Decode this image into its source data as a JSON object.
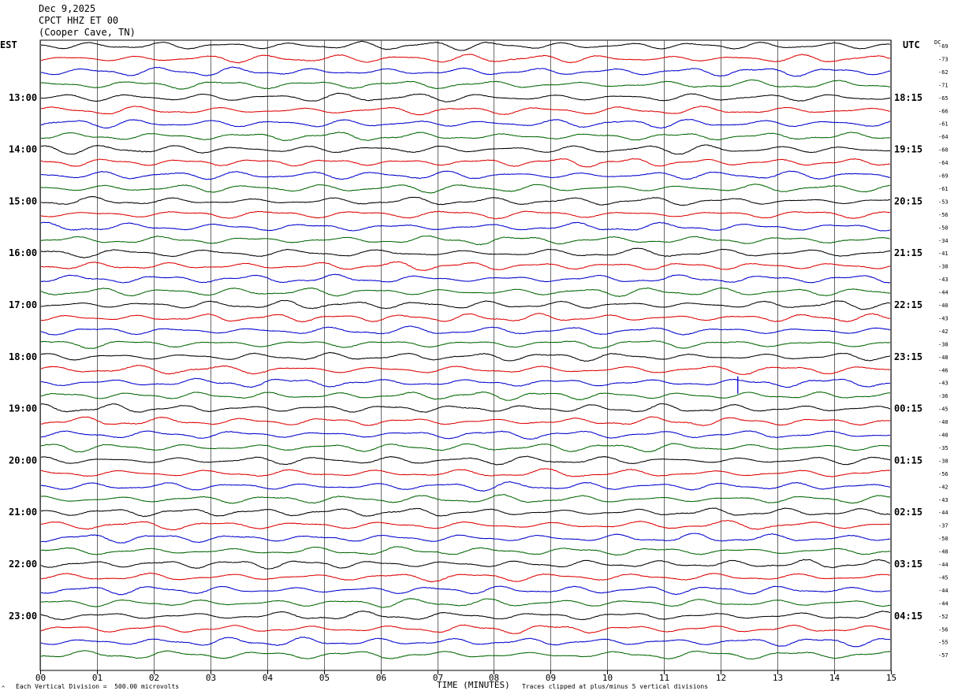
{
  "header": {
    "date": "Dec 9,2025",
    "station": "CPCT HHZ ET 00",
    "location": "(Cooper Cave, TN)"
  },
  "left_zone_label": "EST",
  "right_zone_label": "UTC",
  "dc_label": "DC",
  "footer": {
    "scale_text": "Each Vertical Division =  500.00 microvolts",
    "clip_text": "Traces clipped at plus/minus 5 vertical divisions",
    "corner_mark": "^"
  },
  "colors": {
    "cycle": [
      "#000000",
      "#dd0000",
      "#0000cc",
      "#006600"
    ],
    "grid": "#000000"
  },
  "chart_data": {
    "type": "line",
    "title": "CPCT HHZ ET 00",
    "xlabel": "TIME (MINUTES)",
    "x_ticks": [
      "00",
      "01",
      "02",
      "03",
      "04",
      "05",
      "06",
      "07",
      "08",
      "09",
      "10",
      "11",
      "12",
      "13",
      "14",
      "15"
    ],
    "xlim": [
      0,
      15
    ],
    "trace_count": 48,
    "left_hour_labels": [
      "13:00",
      "14:00",
      "15:00",
      "16:00",
      "17:00",
      "18:00",
      "19:00",
      "20:00",
      "21:00",
      "22:00",
      "23:00"
    ],
    "right_hour_labels": [
      "18:15",
      "19:15",
      "20:15",
      "21:15",
      "22:15",
      "23:15",
      "00:15",
      "01:15",
      "02:15",
      "03:15",
      "04:15"
    ],
    "dc_offsets": [
      -69,
      -73,
      -62,
      -71,
      -65,
      -66,
      -61,
      -64,
      -60,
      -64,
      -69,
      -61,
      -53,
      -56,
      -50,
      -34,
      -41,
      -38,
      -43,
      -44,
      -40,
      -43,
      -42,
      -38,
      -48,
      -46,
      -43,
      -36,
      -45,
      -40,
      -40,
      -35,
      -38,
      -56,
      -42,
      -43,
      -44,
      -37,
      -50,
      -48,
      -44,
      -45,
      -44,
      -44,
      -52,
      -56,
      -55,
      -57
    ],
    "events": [
      {
        "trace": 26,
        "minute": 12.3,
        "note": "spike"
      }
    ]
  }
}
